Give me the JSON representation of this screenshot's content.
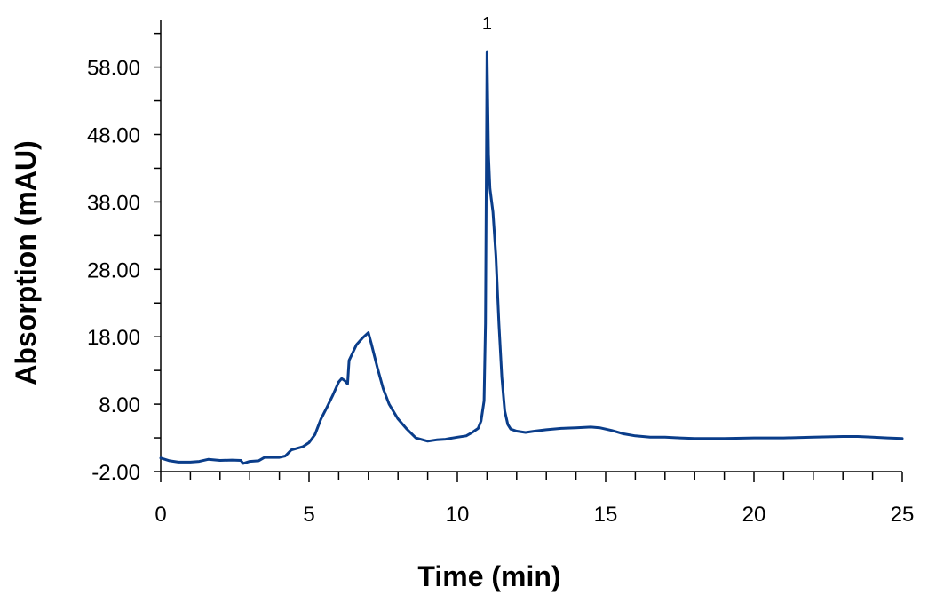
{
  "chart_data": {
    "type": "line",
    "title": "",
    "xlabel": "Time (min)",
    "ylabel": "Absorption (mAU)",
    "xlim": [
      0,
      25
    ],
    "ylim": [
      -2,
      62
    ],
    "x_ticks": [
      0,
      5,
      10,
      15,
      20,
      25
    ],
    "x_tick_labels": [
      "0",
      "5",
      "10",
      "15",
      "20",
      "25"
    ],
    "x_minor_step": 1,
    "y_ticks": [
      -2,
      8,
      18,
      28,
      38,
      48,
      58
    ],
    "y_tick_labels": [
      "-2.00",
      "8.00",
      "18.00",
      "28.00",
      "38.00",
      "48.00",
      "58.00"
    ],
    "y_minor_step": 5,
    "grid": false,
    "legend": null,
    "line_color": "#0a3d8a",
    "annotations": [
      {
        "text": "1",
        "x": 11.0,
        "y": 63.5
      }
    ],
    "series": [
      {
        "name": "Absorption",
        "x": [
          0,
          0.3,
          0.6,
          1.0,
          1.3,
          1.6,
          2.0,
          2.4,
          2.7,
          2.78,
          3.0,
          3.3,
          3.5,
          4.0,
          4.2,
          4.4,
          4.8,
          5.0,
          5.2,
          5.4,
          5.6,
          5.8,
          6.0,
          6.1,
          6.2,
          6.3,
          6.35,
          6.45,
          6.6,
          6.8,
          7.0,
          7.1,
          7.3,
          7.5,
          7.7,
          8.0,
          8.3,
          8.6,
          9.0,
          9.3,
          9.6,
          10.0,
          10.3,
          10.5,
          10.7,
          10.8,
          10.9,
          10.95,
          11.0,
          11.05,
          11.1,
          11.2,
          11.3,
          11.4,
          11.5,
          11.6,
          11.7,
          11.8,
          12.0,
          12.3,
          12.6,
          13.0,
          13.5,
          14.0,
          14.5,
          14.8,
          15.2,
          15.6,
          16.0,
          16.5,
          17.0,
          17.5,
          18.0,
          19.0,
          20.0,
          21.0,
          22.0,
          23.0,
          23.5,
          24.0,
          24.5,
          25.0
        ],
        "values": [
          0.0,
          -0.4,
          -0.6,
          -0.6,
          -0.5,
          -0.2,
          -0.35,
          -0.3,
          -0.35,
          -0.8,
          -0.5,
          -0.4,
          0.1,
          0.1,
          0.3,
          1.2,
          1.7,
          2.3,
          3.5,
          5.8,
          7.5,
          9.3,
          11.3,
          11.8,
          11.5,
          11.0,
          14.5,
          15.4,
          16.8,
          17.8,
          18.6,
          17.0,
          13.5,
          10.3,
          8.0,
          5.8,
          4.3,
          3.0,
          2.5,
          2.7,
          2.8,
          3.1,
          3.3,
          3.8,
          4.4,
          5.5,
          8.5,
          20.0,
          60.3,
          45.0,
          40.0,
          36.5,
          30.0,
          20.0,
          12.0,
          7.0,
          5.0,
          4.3,
          4.0,
          3.8,
          4.0,
          4.2,
          4.4,
          4.5,
          4.6,
          4.5,
          4.1,
          3.6,
          3.3,
          3.1,
          3.1,
          3.0,
          2.9,
          2.9,
          3.0,
          3.0,
          3.1,
          3.2,
          3.2,
          3.1,
          3.0,
          2.9
        ]
      }
    ]
  }
}
